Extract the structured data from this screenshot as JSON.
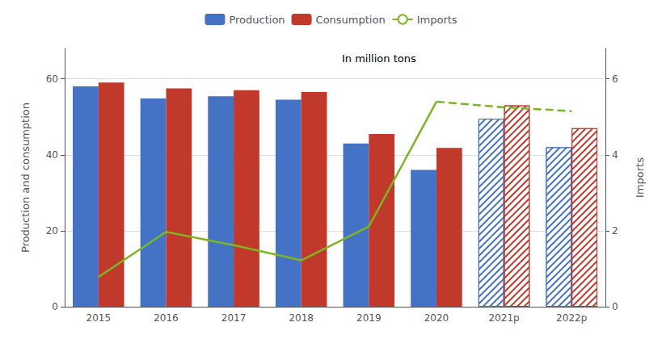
{
  "chart_data": {
    "type": "bar",
    "annotation": "In million tons",
    "categories": [
      "2015",
      "2016",
      "2017",
      "2018",
      "2019",
      "2020",
      "2021p",
      "2022p"
    ],
    "series": [
      {
        "name": "Production",
        "type": "bar",
        "color": "#4472C4",
        "values": [
          58.0,
          54.8,
          55.4,
          54.5,
          43.0,
          36.0,
          49.5,
          42.0
        ]
      },
      {
        "name": "Consumption",
        "type": "bar",
        "color": "#C0392B",
        "values": [
          59.0,
          57.5,
          57.0,
          56.5,
          45.5,
          41.8,
          53.0,
          47.0
        ]
      },
      {
        "name": "Imports",
        "type": "line",
        "axis": "y2",
        "color": "#7DB524",
        "values": [
          0.78,
          1.97,
          1.62,
          1.22,
          2.11,
          5.4,
          5.25,
          5.15
        ]
      }
    ],
    "ylabel": "Production and consumption",
    "y2label": "Imports",
    "ylim": [
      0,
      68
    ],
    "yticks": [
      0,
      20,
      40,
      60
    ],
    "y2lim": [
      0,
      6.8
    ],
    "y2ticks": [
      0,
      2,
      4,
      6
    ],
    "grid": true,
    "legend": "top"
  }
}
